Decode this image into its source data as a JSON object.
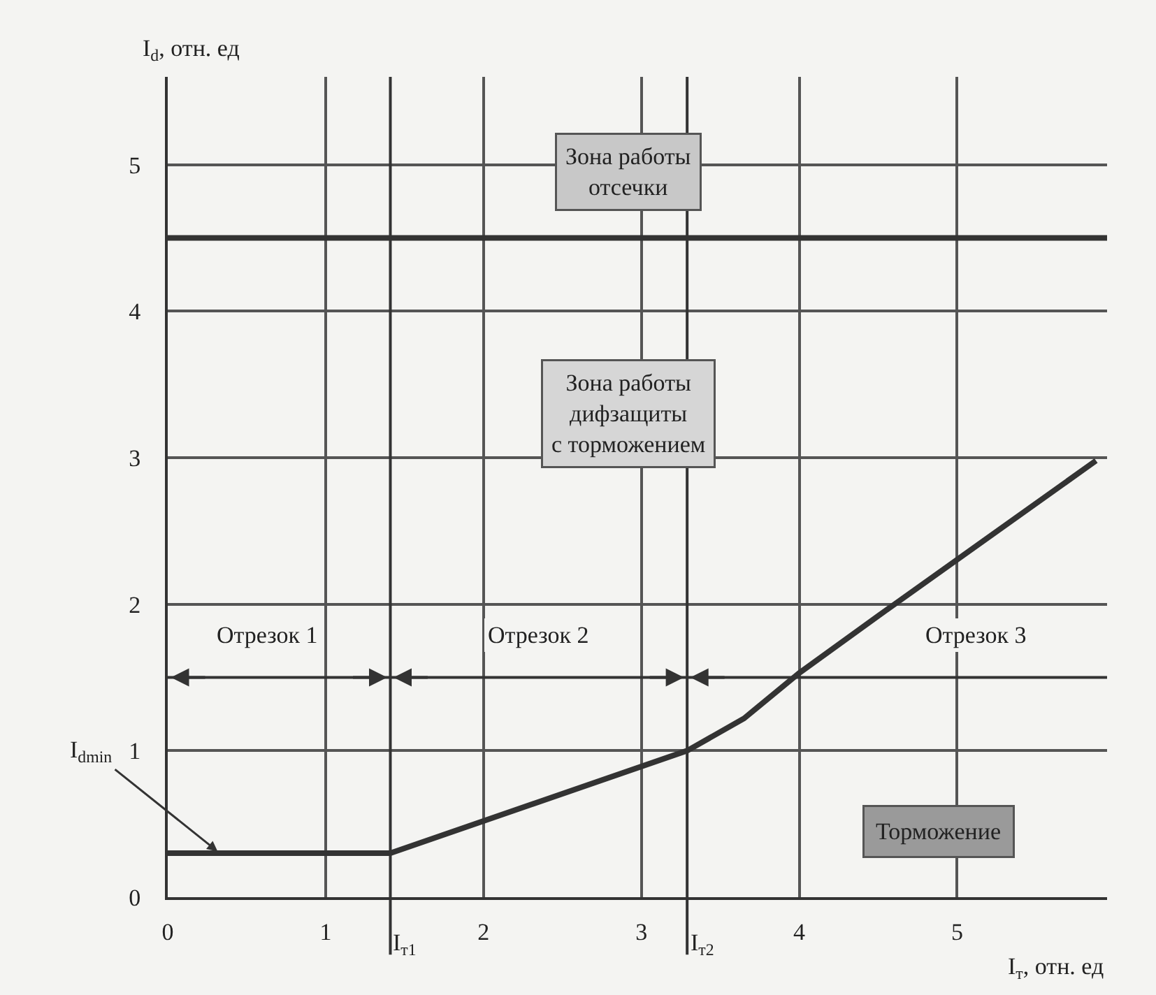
{
  "chart_data": {
    "type": "line",
    "xlabel": "I$_{т}$, отн. ед",
    "ylabel": "I$_{d}$, отн. ед",
    "x": [
      0,
      1.41,
      3.29,
      3.65,
      4.0,
      4.5,
      5.88
    ],
    "series": [
      {
        "color": "#333333",
        "values": [
          0.3,
          0.3,
          1.0,
          1.22,
          1.53,
          1.92,
          2.98
        ]
      }
    ],
    "xlim": [
      0,
      5.95
    ],
    "ylim": [
      0,
      5.6
    ],
    "xticks": [
      0,
      1,
      2,
      3,
      4,
      5
    ],
    "yticks": [
      0,
      1,
      2,
      3,
      4,
      5
    ],
    "grid": true,
    "marker": "none",
    "line_style": "solid",
    "ref_lines": [
      {
        "axis": "y",
        "value": 4.5
      },
      {
        "axis": "y",
        "value": 1.5
      },
      {
        "axis": "x",
        "value": 1.41,
        "label": "I$_{т1}$"
      },
      {
        "axis": "x",
        "value": 3.29,
        "label": "I$_{т2}$"
      }
    ],
    "annotations": [
      "Зона работы\nотсечки",
      "Зона работы\nдифзащиты\nс торможением",
      "Отрезок 1",
      "Отрезок 2",
      "Отрезок 3",
      "Торможение",
      {
        "text": "I$_{dmin}$",
        "x": 0.33,
        "y": 0.3
      }
    ]
  }
}
